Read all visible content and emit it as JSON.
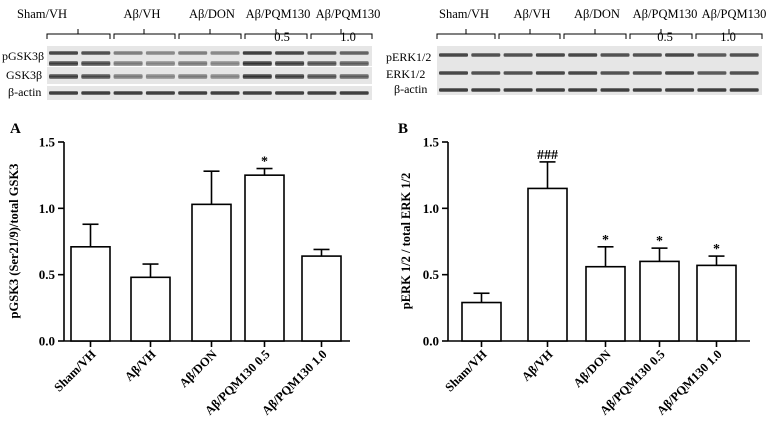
{
  "blots": [
    {
      "groups": [
        "Sham/VH",
        "Aβ/VH",
        "Aβ/DON",
        "Aβ/PQM130",
        "Aβ/PQM130"
      ],
      "doses": [
        "",
        "",
        "",
        "0.5",
        "1.0"
      ],
      "rows": [
        "pGSK3β",
        "GSK3β",
        "β-actin"
      ]
    },
    {
      "groups": [
        "Sham/VH",
        "Aβ/VH",
        "Aβ/DON",
        "Aβ/PQM130",
        "Aβ/PQM130"
      ],
      "doses": [
        "",
        "",
        "",
        "0.5",
        "1.0"
      ],
      "rows": [
        "pERK1/2",
        "ERK1/2",
        "β-actin"
      ]
    }
  ],
  "chart_data": [
    {
      "type": "bar",
      "panel": "A",
      "categories": [
        "Sham/VH",
        "Aβ/VH",
        "Aβ/DON",
        "Aβ/PQM130 0.5",
        "Aβ/PQM130 1.0"
      ],
      "values": [
        0.71,
        0.48,
        1.03,
        1.25,
        0.64
      ],
      "errors": [
        0.17,
        0.1,
        0.25,
        0.05,
        0.05
      ],
      "annotations": [
        "",
        "",
        "",
        "*",
        ""
      ],
      "ylabel": "pGSK3 (Ser21/9)/total GSK3",
      "ylim": [
        0,
        1.5
      ],
      "yticks": [
        "0.0",
        "0.5",
        "1.0",
        "1.5"
      ],
      "grid": false
    },
    {
      "type": "bar",
      "panel": "B",
      "categories": [
        "Sham/VH",
        "Aβ/VH",
        "Aβ/DON",
        "Aβ/PQM130 0.5",
        "Aβ/PQM130 1.0"
      ],
      "values": [
        0.29,
        1.15,
        0.56,
        0.6,
        0.57
      ],
      "errors": [
        0.07,
        0.2,
        0.15,
        0.1,
        0.07
      ],
      "annotations": [
        "",
        "###",
        "*",
        "*",
        "*"
      ],
      "ylabel": "pERK 1/2 / total ERK 1/2",
      "ylim": [
        0,
        1.5
      ],
      "yticks": [
        "0.0",
        "0.5",
        "1.0",
        "1.5"
      ],
      "grid": false
    }
  ]
}
